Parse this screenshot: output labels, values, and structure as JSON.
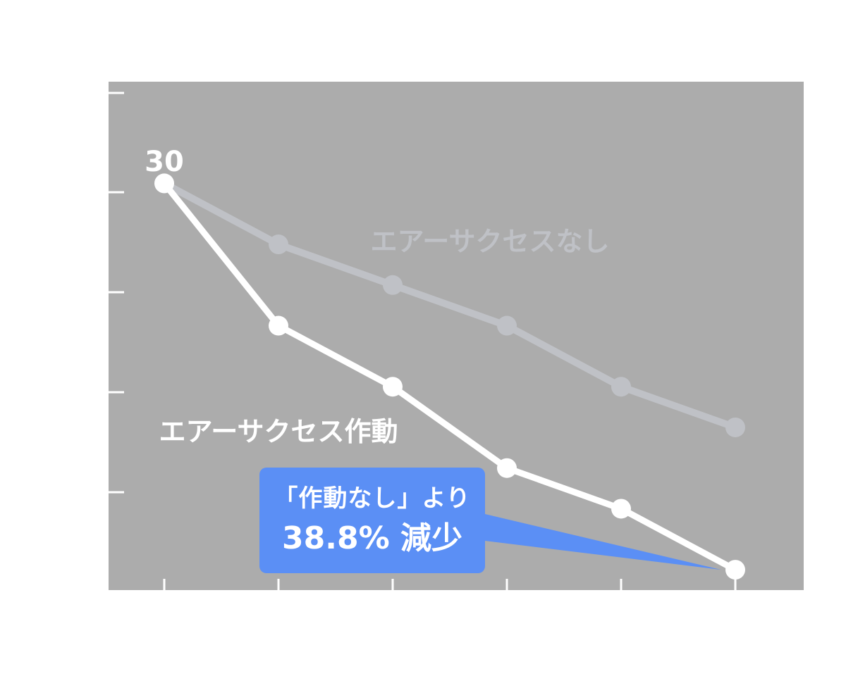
{
  "chart_data": {
    "type": "line",
    "x": [
      "",
      "",
      "",
      "",
      "",
      ""
    ],
    "series": [
      {
        "name": "エアーサクセスなし",
        "values": [
          30,
          27,
          25,
          23,
          20,
          18
        ],
        "color": "#bfc1c6"
      },
      {
        "name": "エアーサクセス作動",
        "values": [
          30,
          23,
          20,
          16,
          14,
          11
        ],
        "color": "#ffffff"
      }
    ],
    "ylim": [
      10,
      35
    ],
    "title": "",
    "xlabel": "",
    "ylabel": "",
    "grid": false,
    "plot_background": "#acacac",
    "start_label": "30",
    "callout": {
      "line1": "「作動なし」より",
      "line2": "38.8% 減少",
      "color": "#5b8ff5"
    }
  }
}
